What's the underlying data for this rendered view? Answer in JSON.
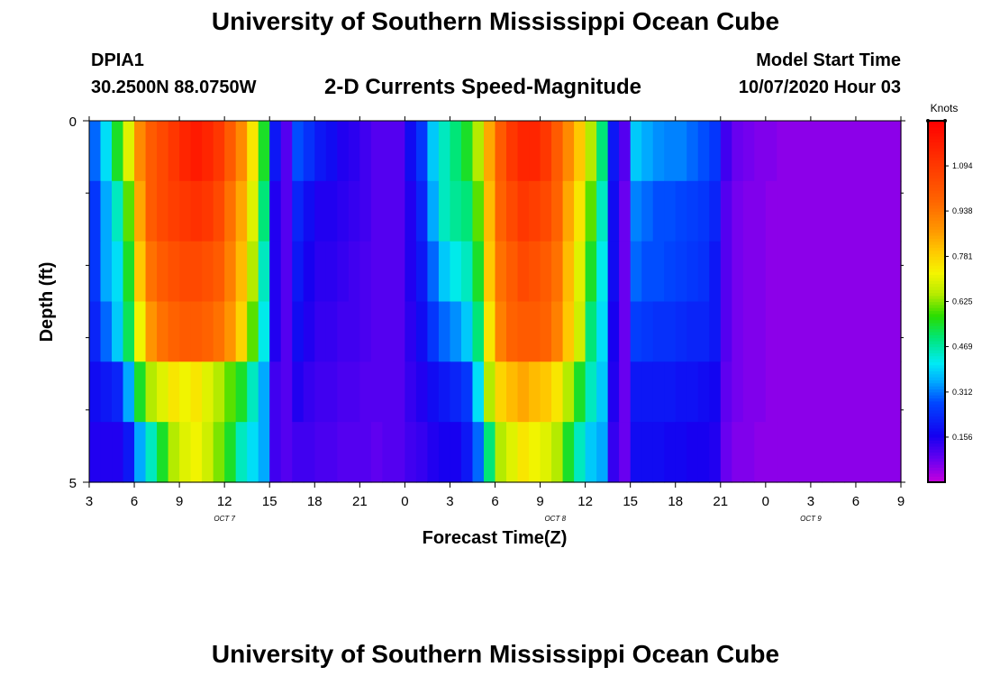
{
  "page": {
    "title_top": "University of Southern Mississippi Ocean Cube",
    "title_bottom": "University of Southern Mississippi Ocean Cube",
    "station_id": "DPIA1",
    "coords": "30.2500N 88.0750W",
    "chart_title": "2-D Currents Speed-Magnitude",
    "model_start_label": "Model Start Time",
    "model_start_value": "10/07/2020 Hour 03"
  },
  "chart_data": {
    "type": "heatmap",
    "title": "2-D Currents Speed-Magnitude",
    "xlabel": "Forecast Time(Z)",
    "ylabel": "Depth (ft)",
    "y_tick_labels": [
      "0",
      "5"
    ],
    "x_tick_labels": [
      "3",
      "6",
      "9",
      "12",
      "15",
      "18",
      "21",
      "0",
      "3",
      "6",
      "9",
      "12",
      "15",
      "18",
      "21",
      "0",
      "3",
      "6",
      "9"
    ],
    "date_labels": [
      {
        "text": "OCT 7",
        "after_tick": 9
      },
      {
        "text": "OCT 8",
        "after_tick": 31
      },
      {
        "text": "OCT 9",
        "after_tick": 48
      }
    ],
    "x_range_hours": [
      0,
      54
    ],
    "y_range": [
      0,
      5
    ],
    "colorbar": {
      "unit": "Knots",
      "tick_labels": [
        "0.156",
        "0.312",
        "0.469",
        "0.625",
        "0.781",
        "0.938",
        "1.094"
      ],
      "range": [
        0,
        1.25
      ]
    },
    "rows": [
      [
        0.3,
        0.4,
        0.55,
        0.7,
        0.9,
        1.0,
        1.05,
        1.1,
        1.15,
        1.18,
        1.15,
        1.1,
        1.0,
        0.9,
        0.75,
        0.55,
        0.2,
        0.1,
        0.28,
        0.24,
        0.2,
        0.18,
        0.15,
        0.14,
        0.12,
        0.1,
        0.1,
        0.1,
        0.18,
        0.25,
        0.38,
        0.45,
        0.5,
        0.55,
        0.65,
        0.85,
        1.0,
        1.1,
        1.15,
        1.15,
        1.1,
        1.0,
        0.9,
        0.8,
        0.65,
        0.5,
        0.2,
        0.1,
        0.38,
        0.35,
        0.33,
        0.32,
        0.32,
        0.3,
        0.28,
        0.25,
        0.12,
        0.08,
        0.07,
        0.06,
        0.06,
        0.05,
        0.05,
        0.05,
        0.05,
        0.05,
        0.05,
        0.05,
        0.05,
        0.05,
        0.05,
        0.05
      ],
      [
        0.25,
        0.35,
        0.45,
        0.6,
        0.85,
        1.0,
        1.05,
        1.08,
        1.1,
        1.12,
        1.1,
        1.05,
        0.95,
        0.85,
        0.7,
        0.5,
        0.15,
        0.1,
        0.22,
        0.18,
        0.15,
        0.15,
        0.14,
        0.13,
        0.12,
        0.1,
        0.1,
        0.1,
        0.15,
        0.22,
        0.35,
        0.45,
        0.48,
        0.5,
        0.6,
        0.82,
        0.98,
        1.05,
        1.1,
        1.08,
        1.05,
        0.98,
        0.85,
        0.75,
        0.6,
        0.45,
        0.18,
        0.08,
        0.32,
        0.3,
        0.28,
        0.28,
        0.27,
        0.26,
        0.25,
        0.22,
        0.1,
        0.07,
        0.06,
        0.06,
        0.05,
        0.05,
        0.05,
        0.05,
        0.05,
        0.05,
        0.05,
        0.05,
        0.05,
        0.05,
        0.05,
        0.05
      ],
      [
        0.25,
        0.35,
        0.4,
        0.55,
        0.8,
        0.95,
        1.0,
        1.03,
        1.05,
        1.05,
        1.03,
        1.0,
        0.92,
        0.82,
        0.65,
        0.45,
        0.15,
        0.1,
        0.2,
        0.16,
        0.14,
        0.14,
        0.13,
        0.12,
        0.11,
        0.1,
        0.1,
        0.1,
        0.15,
        0.2,
        0.3,
        0.38,
        0.42,
        0.45,
        0.55,
        0.8,
        0.95,
        1.0,
        1.05,
        1.03,
        1.0,
        0.95,
        0.82,
        0.7,
        0.55,
        0.42,
        0.18,
        0.08,
        0.3,
        0.28,
        0.28,
        0.27,
        0.26,
        0.25,
        0.24,
        0.2,
        0.1,
        0.07,
        0.06,
        0.06,
        0.05,
        0.05,
        0.05,
        0.05,
        0.05,
        0.05,
        0.05,
        0.05,
        0.05,
        0.05,
        0.05,
        0.05
      ],
      [
        0.22,
        0.3,
        0.38,
        0.52,
        0.72,
        0.88,
        0.95,
        0.98,
        1.0,
        1.0,
        0.98,
        0.95,
        0.88,
        0.78,
        0.6,
        0.42,
        0.15,
        0.1,
        0.18,
        0.15,
        0.13,
        0.13,
        0.12,
        0.12,
        0.11,
        0.1,
        0.1,
        0.1,
        0.14,
        0.18,
        0.25,
        0.3,
        0.33,
        0.38,
        0.5,
        0.75,
        0.92,
        0.98,
        1.0,
        1.0,
        0.98,
        0.92,
        0.8,
        0.68,
        0.5,
        0.4,
        0.16,
        0.08,
        0.26,
        0.25,
        0.24,
        0.24,
        0.23,
        0.22,
        0.22,
        0.2,
        0.1,
        0.07,
        0.06,
        0.06,
        0.05,
        0.05,
        0.05,
        0.05,
        0.05,
        0.05,
        0.05,
        0.05,
        0.05,
        0.05,
        0.05,
        0.05
      ],
      [
        0.18,
        0.2,
        0.22,
        0.35,
        0.55,
        0.65,
        0.7,
        0.75,
        0.72,
        0.75,
        0.7,
        0.65,
        0.6,
        0.55,
        0.45,
        0.35,
        0.12,
        0.1,
        0.15,
        0.13,
        0.12,
        0.12,
        0.11,
        0.11,
        0.1,
        0.1,
        0.1,
        0.1,
        0.13,
        0.15,
        0.18,
        0.2,
        0.22,
        0.25,
        0.4,
        0.65,
        0.78,
        0.82,
        0.85,
        0.82,
        0.8,
        0.75,
        0.65,
        0.55,
        0.45,
        0.38,
        0.15,
        0.08,
        0.2,
        0.2,
        0.2,
        0.2,
        0.19,
        0.19,
        0.18,
        0.17,
        0.09,
        0.07,
        0.06,
        0.06,
        0.05,
        0.05,
        0.05,
        0.05,
        0.05,
        0.05,
        0.05,
        0.05,
        0.05,
        0.05,
        0.05,
        0.05
      ],
      [
        0.15,
        0.15,
        0.15,
        0.2,
        0.35,
        0.45,
        0.55,
        0.65,
        0.7,
        0.72,
        0.68,
        0.62,
        0.55,
        0.45,
        0.4,
        0.35,
        0.12,
        0.1,
        0.12,
        0.12,
        0.11,
        0.11,
        0.1,
        0.1,
        0.1,
        0.09,
        0.1,
        0.1,
        0.12,
        0.13,
        0.15,
        0.16,
        0.16,
        0.2,
        0.3,
        0.5,
        0.65,
        0.7,
        0.75,
        0.72,
        0.7,
        0.65,
        0.55,
        0.45,
        0.38,
        0.35,
        0.13,
        0.08,
        0.18,
        0.18,
        0.18,
        0.17,
        0.17,
        0.16,
        0.16,
        0.15,
        0.08,
        0.06,
        0.06,
        0.05,
        0.05,
        0.05,
        0.05,
        0.05,
        0.05,
        0.05,
        0.05,
        0.05,
        0.05,
        0.05,
        0.05,
        0.05
      ]
    ]
  }
}
